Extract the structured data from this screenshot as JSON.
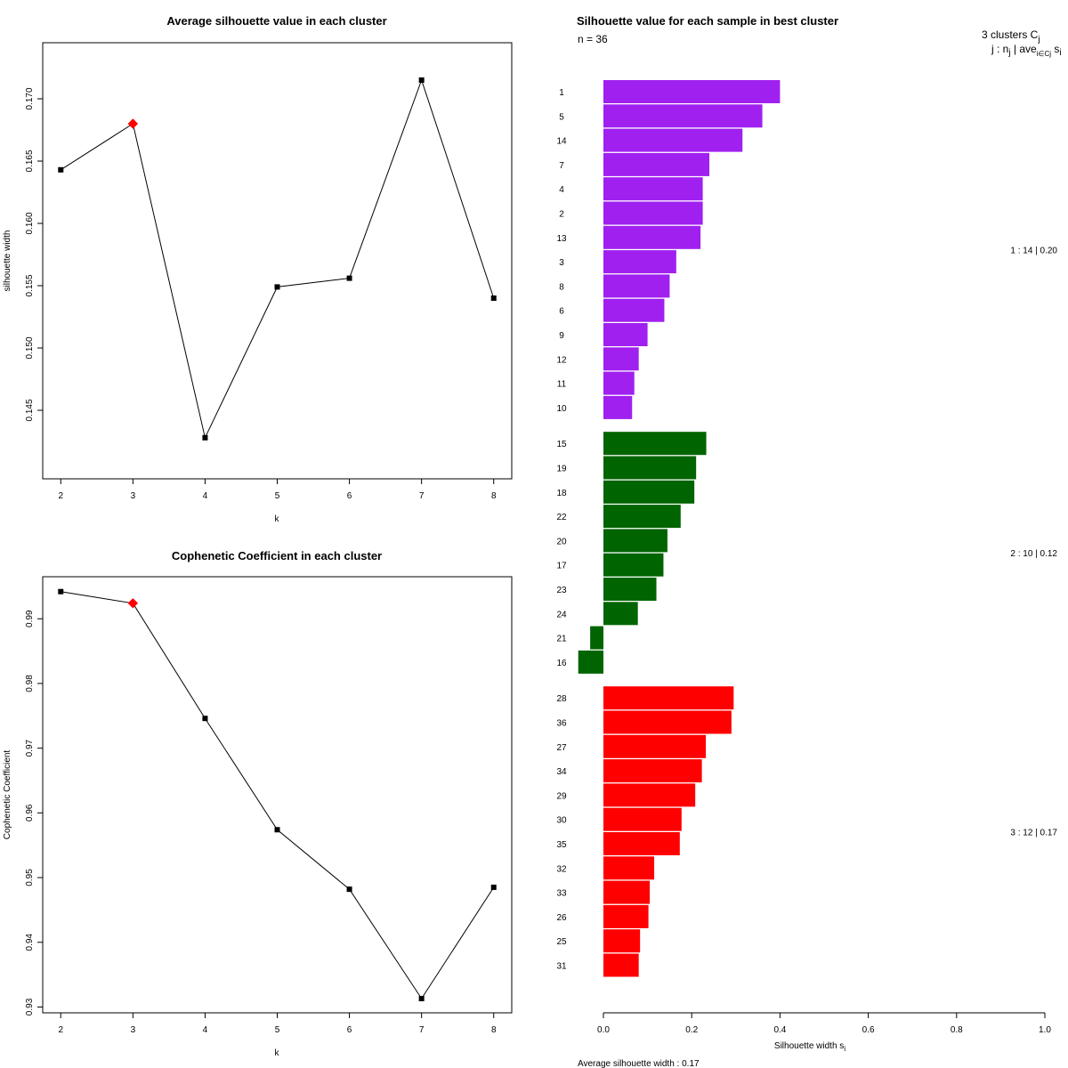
{
  "chart_data": [
    {
      "type": "line",
      "title": "Average silhouette value in each cluster",
      "xlabel": "k",
      "ylabel": "silhouette width",
      "x": [
        2,
        3,
        4,
        5,
        6,
        7,
        8
      ],
      "values": [
        0.1643,
        0.168,
        0.1428,
        0.1549,
        0.1556,
        0.1715,
        0.154
      ],
      "highlight_index": 1,
      "xlim": [
        1.75,
        8.25
      ],
      "ylim": [
        0.1395,
        0.1745
      ],
      "xticks": [
        "2",
        "3",
        "4",
        "5",
        "6",
        "7",
        "8"
      ],
      "yticks": [
        "0.145",
        "0.150",
        "0.155",
        "0.160",
        "0.165",
        "0.170"
      ],
      "ytick_values": [
        0.145,
        0.15,
        0.155,
        0.16,
        0.165,
        0.17
      ]
    },
    {
      "type": "line",
      "title": "Cophenetic Coefficient in each cluster",
      "xlabel": "k",
      "ylabel": "Cophenetic Coefficient",
      "x": [
        2,
        3,
        4,
        5,
        6,
        7,
        8
      ],
      "values": [
        0.9942,
        0.9924,
        0.9746,
        0.9574,
        0.9482,
        0.9313,
        0.9485
      ],
      "highlight_index": 1,
      "xlim": [
        1.75,
        8.25
      ],
      "ylim": [
        0.9291,
        0.9965
      ],
      "xticks": [
        "2",
        "3",
        "4",
        "5",
        "6",
        "7",
        "8"
      ],
      "yticks": [
        "0.93",
        "0.94",
        "0.95",
        "0.96",
        "0.97",
        "0.98",
        "0.99"
      ],
      "ytick_values": [
        0.93,
        0.94,
        0.95,
        0.96,
        0.97,
        0.98,
        0.99
      ]
    },
    {
      "type": "bar",
      "orientation": "horizontal",
      "title": "Silhouette value for each sample in best cluster",
      "n_label": "n = 36",
      "xlabel": "Silhouette width s",
      "xlabel_sub": "i",
      "xlim": [
        0,
        1
      ],
      "xticks": [
        "0.0",
        "0.2",
        "0.4",
        "0.6",
        "0.8",
        "1.0"
      ],
      "xtick_values": [
        0,
        0.2,
        0.4,
        0.6,
        0.8,
        1.0
      ],
      "legend_header": "3  clusters  C",
      "legend_header_sub": "j",
      "legend_sub": "j :  n",
      "legend_sub_n": "j",
      "legend_sub_ave": " | ave",
      "legend_sub_i": "i∈Cj",
      "legend_sub_s": " s",
      "legend_sub_si": "i",
      "average_label": "Average silhouette width :  0.17",
      "clusters": [
        {
          "color": "#A020F0",
          "label": "1 :   14  |  0.20",
          "samples": [
            "1",
            "5",
            "14",
            "7",
            "4",
            "2",
            "13",
            "3",
            "8",
            "6",
            "9",
            "12",
            "11",
            "10"
          ],
          "values": [
            0.4,
            0.36,
            0.315,
            0.24,
            0.225,
            0.225,
            0.22,
            0.165,
            0.15,
            0.138,
            0.1,
            0.08,
            0.07,
            0.065
          ]
        },
        {
          "color": "#006400",
          "label": "2 :   10  |  0.12",
          "samples": [
            "15",
            "19",
            "18",
            "22",
            "20",
            "17",
            "23",
            "24",
            "21",
            "16"
          ],
          "values": [
            0.233,
            0.21,
            0.206,
            0.175,
            0.145,
            0.136,
            0.12,
            0.078,
            -0.03,
            -0.057
          ]
        },
        {
          "color": "#FF0000",
          "label": "3 :   12  |  0.17",
          "samples": [
            "28",
            "36",
            "27",
            "34",
            "29",
            "30",
            "35",
            "32",
            "33",
            "26",
            "25",
            "31"
          ],
          "values": [
            0.295,
            0.29,
            0.232,
            0.223,
            0.208,
            0.177,
            0.173,
            0.115,
            0.105,
            0.102,
            0.083,
            0.08
          ]
        }
      ]
    }
  ]
}
